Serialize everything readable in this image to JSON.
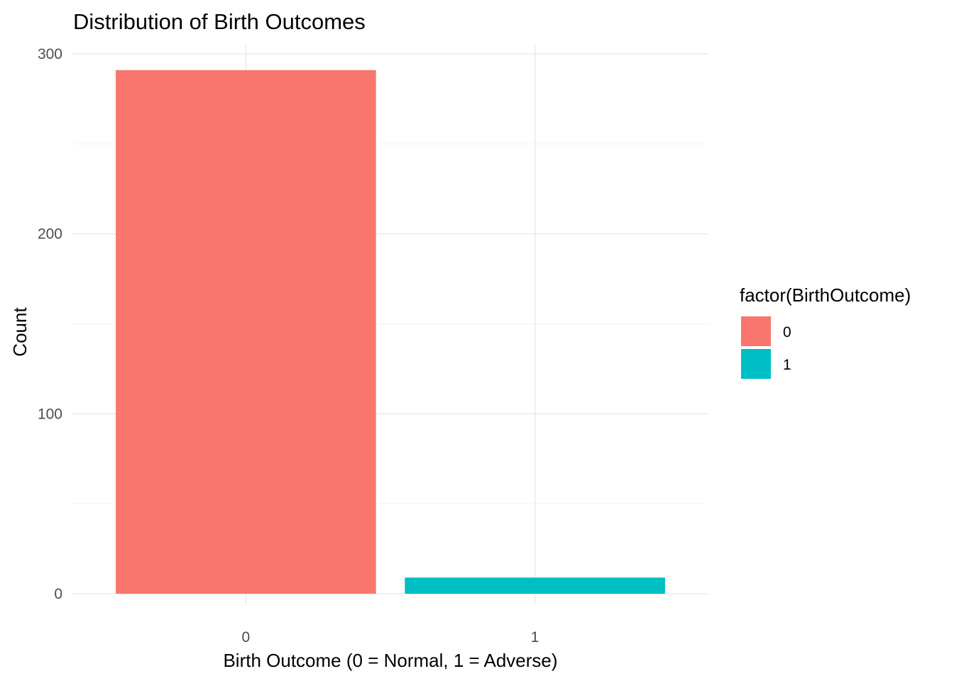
{
  "chart_data": {
    "type": "bar",
    "title": "Distribution of Birth Outcomes",
    "xlabel": "Birth Outcome (0 = Normal, 1 = Adverse)",
    "ylabel": "Count",
    "categories": [
      "0",
      "1"
    ],
    "values": [
      291,
      9
    ],
    "colors": [
      "#F8766D",
      "#00BFC4"
    ],
    "ylim": [
      0,
      305
    ],
    "y_ticks": [
      0,
      100,
      200,
      300
    ],
    "y_tick_labels": [
      "0",
      "100",
      "200",
      "300"
    ],
    "y_minor_ticks": [
      50,
      150,
      250
    ],
    "grid": true,
    "legend": {
      "title": "factor(BirthOutcome)",
      "placement": "right",
      "entries": [
        {
          "label": "0",
          "color": "#F8766D"
        },
        {
          "label": "1",
          "color": "#00BFC4"
        }
      ]
    }
  }
}
